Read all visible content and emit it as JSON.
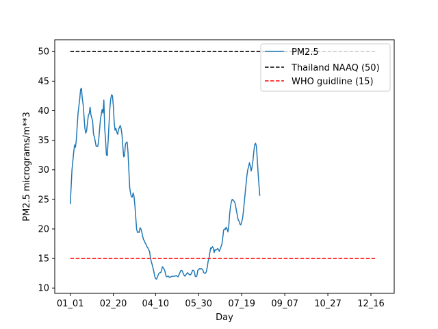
{
  "chart_data": {
    "type": "line",
    "xlabel": "Day",
    "ylabel": "PM2.5 micrograms/m**3",
    "xlim": [
      -18,
      376
    ],
    "ylim": [
      9.1,
      52.0
    ],
    "x_ticks": [
      {
        "label": "01_01",
        "day": 0
      },
      {
        "label": "02_20",
        "day": 50
      },
      {
        "label": "04_10",
        "day": 99
      },
      {
        "label": "05_30",
        "day": 149
      },
      {
        "label": "07_19",
        "day": 199
      },
      {
        "label": "09_07",
        "day": 249
      },
      {
        "label": "10_27",
        "day": 299
      },
      {
        "label": "12_16",
        "day": 349
      }
    ],
    "y_ticks": [
      10,
      15,
      20,
      25,
      30,
      35,
      40,
      45,
      50
    ],
    "grid": false,
    "legend_position": "top-right",
    "series": [
      {
        "name": "PM2.5",
        "color": "#1f77b4",
        "style": "solid",
        "points": [
          [
            0,
            24.2
          ],
          [
            2,
            30
          ],
          [
            4,
            33
          ],
          [
            5,
            34.2
          ],
          [
            6,
            33.8
          ],
          [
            7,
            35
          ],
          [
            9,
            39.5
          ],
          [
            11,
            42
          ],
          [
            12,
            43.6
          ],
          [
            13,
            43.8
          ],
          [
            14,
            42
          ],
          [
            15,
            41
          ],
          [
            16,
            39
          ],
          [
            17,
            37
          ],
          [
            18,
            36.2
          ],
          [
            19,
            36.6
          ],
          [
            20,
            38
          ],
          [
            21,
            39.2
          ],
          [
            22,
            39.5
          ],
          [
            23,
            40.6
          ],
          [
            24,
            39.3
          ],
          [
            26,
            38.2
          ],
          [
            27,
            36
          ],
          [
            28,
            35.6
          ],
          [
            30,
            34
          ],
          [
            32,
            34
          ],
          [
            33,
            35
          ],
          [
            35,
            38.5
          ],
          [
            37,
            40.2
          ],
          [
            38,
            39.6
          ],
          [
            39,
            41.8
          ],
          [
            40,
            37
          ],
          [
            41,
            35
          ],
          [
            42,
            32.5
          ],
          [
            43,
            32.4
          ],
          [
            44,
            35
          ],
          [
            46,
            40.5
          ],
          [
            47,
            42
          ],
          [
            48,
            42.7
          ],
          [
            49,
            42.5
          ],
          [
            50,
            40.8
          ],
          [
            51,
            38
          ],
          [
            52,
            36.7
          ],
          [
            53,
            37
          ],
          [
            54,
            36.4
          ],
          [
            55,
            36
          ],
          [
            56,
            36.8
          ],
          [
            58,
            37.5
          ],
          [
            59,
            37
          ],
          [
            60,
            36
          ],
          [
            61,
            34
          ],
          [
            62,
            32.2
          ],
          [
            63,
            32.4
          ],
          [
            64,
            34.3
          ],
          [
            65,
            34.6
          ],
          [
            66,
            34.7
          ],
          [
            67,
            33
          ],
          [
            68,
            30
          ],
          [
            69,
            27
          ],
          [
            70,
            26
          ],
          [
            71,
            25.4
          ],
          [
            72,
            25.4
          ],
          [
            73,
            26.1
          ],
          [
            74,
            25.5
          ],
          [
            75,
            24
          ],
          [
            76,
            22
          ],
          [
            77,
            20
          ],
          [
            78,
            19.4
          ],
          [
            79,
            19.5
          ],
          [
            80,
            19.4
          ],
          [
            81,
            20.2
          ],
          [
            82,
            20
          ],
          [
            83,
            19.5
          ],
          [
            84,
            18.8
          ],
          [
            85,
            18.2
          ],
          [
            86,
            18
          ],
          [
            87,
            17.6
          ],
          [
            88,
            17.4
          ],
          [
            89,
            17
          ],
          [
            90,
            16.8
          ],
          [
            91,
            16.5
          ],
          [
            92,
            16.2
          ],
          [
            93,
            15.2
          ],
          [
            94,
            14.5
          ],
          [
            95,
            14
          ],
          [
            96,
            13.4
          ],
          [
            97,
            12.8
          ],
          [
            98,
            12
          ],
          [
            99,
            11.6
          ],
          [
            100,
            11.5
          ],
          [
            101,
            11.8
          ],
          [
            102,
            12.2
          ],
          [
            103,
            12.5
          ],
          [
            104,
            12.6
          ],
          [
            105,
            12.6
          ],
          [
            106,
            13
          ],
          [
            107,
            13.6
          ],
          [
            108,
            13.4
          ],
          [
            109,
            13.2
          ],
          [
            110,
            12.8
          ],
          [
            111,
            12.1
          ],
          [
            112,
            11.9
          ],
          [
            113,
            12
          ],
          [
            114,
            12
          ],
          [
            115,
            11.8
          ],
          [
            117,
            11.9
          ],
          [
            119,
            12
          ],
          [
            121,
            12
          ],
          [
            123,
            12.1
          ],
          [
            124,
            12
          ],
          [
            125,
            11.9
          ],
          [
            126,
            12.2
          ],
          [
            127,
            12.5
          ],
          [
            128,
            12.9
          ],
          [
            129,
            13
          ],
          [
            130,
            12.9
          ],
          [
            131,
            12.5
          ],
          [
            132,
            12.2
          ],
          [
            133,
            12
          ],
          [
            134,
            12.2
          ],
          [
            135,
            12.4
          ],
          [
            136,
            12.6
          ],
          [
            137,
            12.5
          ],
          [
            138,
            12.3
          ],
          [
            139,
            12.2
          ],
          [
            140,
            12.3
          ],
          [
            141,
            12.6
          ],
          [
            142,
            13
          ],
          [
            143,
            13
          ],
          [
            144,
            12.8
          ],
          [
            145,
            12
          ],
          [
            146,
            11.9
          ],
          [
            147,
            12.1
          ],
          [
            148,
            13
          ],
          [
            149,
            13.1
          ],
          [
            150,
            13.3
          ],
          [
            151,
            13.2
          ],
          [
            152,
            13.3
          ],
          [
            153,
            13.2
          ],
          [
            154,
            13
          ],
          [
            155,
            12.6
          ],
          [
            156,
            12.5
          ],
          [
            157,
            12.5
          ],
          [
            158,
            12.8
          ],
          [
            159,
            13.5
          ],
          [
            160,
            14.5
          ],
          [
            161,
            15
          ],
          [
            162,
            16
          ],
          [
            163,
            16.8
          ],
          [
            164,
            16.7
          ],
          [
            165,
            17
          ],
          [
            166,
            16.8
          ],
          [
            167,
            16
          ],
          [
            168,
            16.5
          ],
          [
            169,
            16.4
          ],
          [
            170,
            16.5
          ],
          [
            171,
            16.7
          ],
          [
            172,
            16.5
          ],
          [
            173,
            16.2
          ],
          [
            174,
            16.6
          ],
          [
            175,
            17
          ],
          [
            176,
            17.4
          ],
          [
            177,
            18.5
          ],
          [
            178,
            19.8
          ],
          [
            179,
            20
          ],
          [
            180,
            19.9
          ],
          [
            181,
            20.3
          ],
          [
            182,
            20
          ],
          [
            183,
            19.5
          ],
          [
            184,
            20.5
          ],
          [
            185,
            22.5
          ],
          [
            186,
            23.8
          ],
          [
            187,
            24.6
          ],
          [
            188,
            25
          ],
          [
            189,
            24.9
          ],
          [
            190,
            24.7
          ],
          [
            191,
            24.5
          ],
          [
            192,
            23.8
          ],
          [
            193,
            23
          ],
          [
            194,
            22.2
          ],
          [
            195,
            21.5
          ],
          [
            196,
            21.3
          ],
          [
            197,
            20.8
          ],
          [
            198,
            20.7
          ],
          [
            199,
            21.2
          ],
          [
            200,
            21.8
          ],
          [
            201,
            23
          ],
          [
            202,
            24.5
          ],
          [
            203,
            26
          ],
          [
            204,
            27.5
          ],
          [
            205,
            29
          ],
          [
            206,
            30
          ],
          [
            207,
            30.5
          ],
          [
            208,
            31.2
          ],
          [
            209,
            30.6
          ],
          [
            210,
            29.8
          ],
          [
            211,
            30.5
          ],
          [
            212,
            31.5
          ],
          [
            213,
            33
          ],
          [
            214,
            34.2
          ],
          [
            215,
            34.5
          ],
          [
            216,
            34
          ],
          [
            217,
            32
          ],
          [
            218,
            29.5
          ],
          [
            219,
            27.5
          ],
          [
            220,
            25.6
          ]
        ]
      },
      {
        "name": "Thailand NAAQ (50)",
        "color": "#000000",
        "style": "dashed",
        "points": [
          [
            0,
            50
          ],
          [
            356,
            50
          ]
        ]
      },
      {
        "name": "WHO guidline (15)",
        "color": "#ff0000",
        "style": "dashed",
        "points": [
          [
            0,
            15
          ],
          [
            356,
            15
          ]
        ]
      }
    ]
  }
}
